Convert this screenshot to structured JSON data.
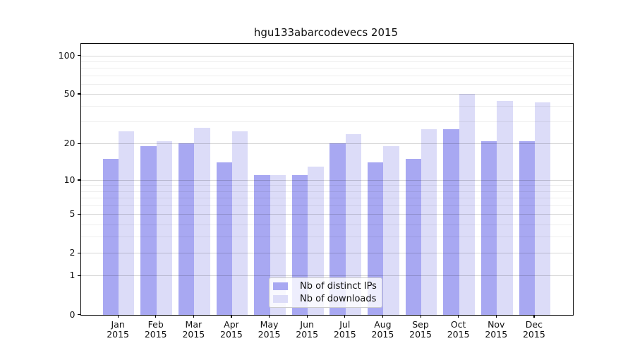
{
  "title": "hgu133abarcodevecs 2015",
  "colors": {
    "distinct_ips_bar": "#a8a8f2",
    "downloads_bar": "#dcdcf8",
    "axis": "#000000",
    "major_grid": "#d6d6d6",
    "minor_grid": "#efefef",
    "legend_border": "#cccccc"
  },
  "legend": {
    "items": [
      {
        "label": "Nb of distinct IPs",
        "color": "#a8a8f2"
      },
      {
        "label": "Nb of downloads",
        "color": "#dcdcf8"
      }
    ]
  },
  "y_axis": {
    "tick_labels": [
      "100",
      "50",
      "20",
      "10",
      "5",
      "2",
      "1",
      "0"
    ],
    "tick_values": [
      100,
      50,
      20,
      10,
      5,
      2,
      1,
      0
    ],
    "minor_gridline_values": [
      3,
      4,
      6,
      7,
      8,
      9,
      30,
      40,
      60,
      70,
      80,
      90
    ]
  },
  "x_axis": {
    "months": [
      "Jan",
      "Feb",
      "Mar",
      "Apr",
      "May",
      "Jun",
      "Jul",
      "Aug",
      "Sep",
      "Oct",
      "Nov",
      "Dec"
    ],
    "year": "2015"
  },
  "chart_data": {
    "type": "bar",
    "title": "hgu133abarcodevecs 2015",
    "categories": [
      "Jan 2015",
      "Feb 2015",
      "Mar 2015",
      "Apr 2015",
      "May 2015",
      "Jun 2015",
      "Jul 2015",
      "Aug 2015",
      "Sep 2015",
      "Oct 2015",
      "Nov 2015",
      "Dec 2015"
    ],
    "series": [
      {
        "name": "Nb of distinct IPs",
        "values": [
          15,
          19,
          20,
          14,
          11,
          11,
          20,
          14,
          15,
          26,
          21,
          21
        ]
      },
      {
        "name": "Nb of downloads",
        "values": [
          25,
          21,
          27,
          25,
          11,
          13,
          24,
          19,
          26,
          50,
          44,
          43
        ]
      }
    ],
    "yscale": "log1p",
    "ylim": [
      0,
      123
    ],
    "yticks": [
      0,
      1,
      2,
      5,
      10,
      20,
      50,
      100
    ],
    "grid": "on",
    "legend_position": "lower center"
  }
}
